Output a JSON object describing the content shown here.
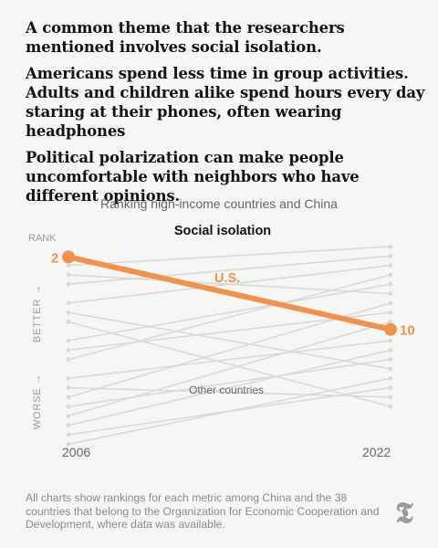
{
  "intro": {
    "p1": "A common theme that the researchers mentioned involves social isolation.",
    "p2": "Americans spend less time in group activities. Adults and children alike spend hours every day staring at their phones, often wearing headphones",
    "p3": "Political polarization can make people uncomfortable with neighbors who have different opinions."
  },
  "chart_data": {
    "type": "line",
    "subtitle": "Ranking high-income countries and China",
    "title": "Social isolation",
    "y_axis_label": "RANK",
    "better_label": "BETTER →",
    "worse_label": "WORSE →",
    "x": [
      "2006",
      "2022"
    ],
    "highlight": {
      "name": "U.S.",
      "values": [
        2,
        10
      ],
      "color": "#f0924c"
    },
    "others_label": "Other countries",
    "others": [
      [
        3,
        1
      ],
      [
        4,
        6
      ],
      [
        5,
        2
      ],
      [
        7,
        3
      ],
      [
        8,
        14
      ],
      [
        9,
        18
      ],
      [
        11,
        5
      ],
      [
        12,
        8
      ],
      [
        13,
        4
      ],
      [
        15,
        11
      ],
      [
        16,
        17
      ],
      [
        17,
        7
      ],
      [
        18,
        13
      ],
      [
        19,
        9
      ],
      [
        20,
        12
      ],
      [
        21,
        16
      ],
      [
        22,
        15
      ]
    ],
    "others_color": "#d9d9d9"
  },
  "footnote": "All charts show rankings for each metric among China and the 38 countries that belong to the Organization for Economic Cooperation and Development, where data was available.",
  "logo": "𝕿"
}
